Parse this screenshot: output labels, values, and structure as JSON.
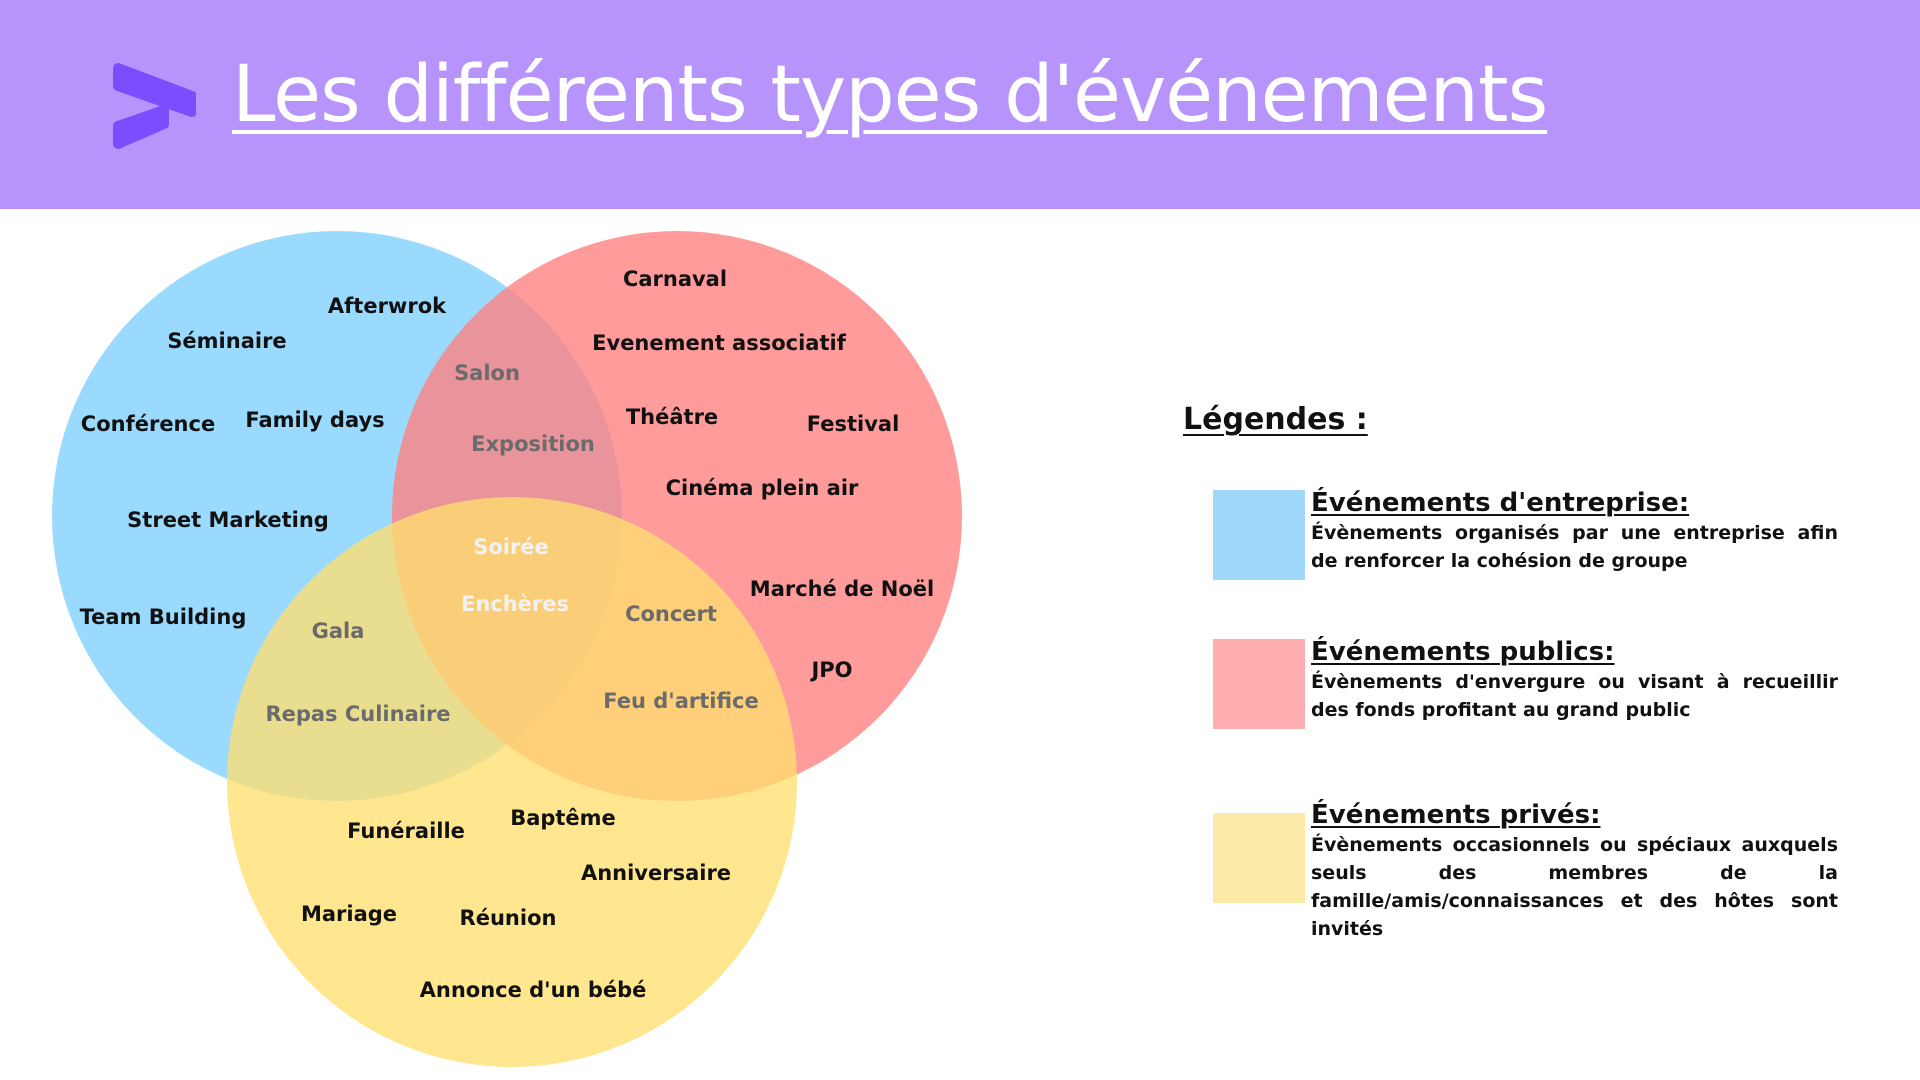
{
  "header": {
    "title": "Les différents types d'événements",
    "color": "#b794fc",
    "logo_icon": "play-arrow-stack-icon",
    "logo_color": "#7c4dff"
  },
  "venn": {
    "sets": [
      {
        "id": "entreprise",
        "color": "#7fd0ff"
      },
      {
        "id": "publics",
        "color": "#ff7f7f"
      },
      {
        "id": "prives",
        "color": "#ffdf70"
      }
    ],
    "labels": {
      "afterwrok": "Afterwrok",
      "seminaire": "Séminaire",
      "conference": "Conférence",
      "family_days": "Family days",
      "street_marketing": "Street Marketing",
      "team_building": "Team Building",
      "carnaval": "Carnaval",
      "evenement_associatif": "Evenement associatif",
      "theatre": "Théâtre",
      "festival": "Festival",
      "cinema": "Cinéma plein air",
      "marche_noel": "Marché de Noël",
      "jpo": "JPO",
      "salon": "Salon",
      "exposition": "Exposition",
      "soiree": "Soirée",
      "encheres": "Enchères",
      "gala": "Gala",
      "repas_culinaire": "Repas Culinaire",
      "concert": "Concert",
      "feu_artifice": "Feu d'artifice",
      "funeraille": "Funéraille",
      "bapteme": "Baptême",
      "anniversaire": "Anniversaire",
      "mariage": "Mariage",
      "reunion": "Réunion",
      "annonce_bebe": "Annonce d'un bébé"
    }
  },
  "legend": {
    "title": "Légendes :",
    "items": [
      {
        "name": "Événements d'entreprise:",
        "description": "Évènements organisés par une entreprise afin de renforcer la cohésion de groupe",
        "color": "#a0d8fa"
      },
      {
        "name": "Événements publics:",
        "description": "Évènements d'envergure ou visant à recueillir des fonds profitant au grand public",
        "color": "#ffafb0"
      },
      {
        "name": "Événements privés:",
        "description": "Évènements occasionnels ou spéciaux auxquels seuls des membres de la famille/amis/connaissances et des hôtes sont invités",
        "color": "#fdeba8"
      }
    ]
  }
}
